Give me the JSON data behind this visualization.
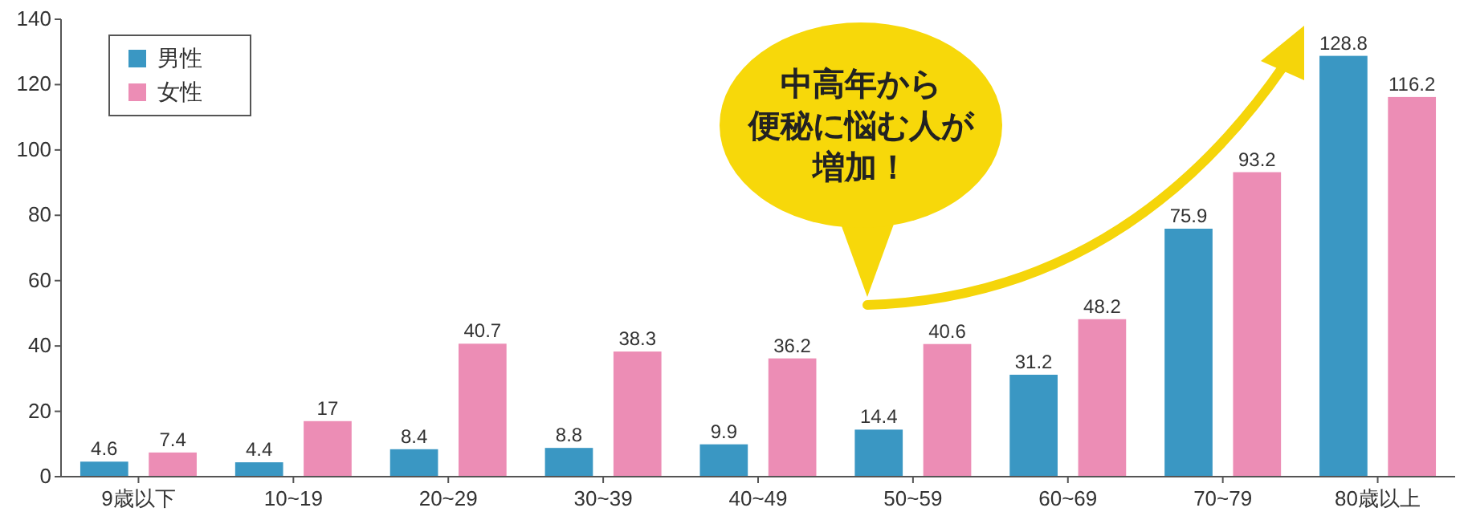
{
  "chart_data": {
    "type": "bar",
    "categories": [
      "9歳以下",
      "10~19",
      "20~29",
      "30~39",
      "40~49",
      "50~59",
      "60~69",
      "70~79",
      "80歳以上"
    ],
    "series": [
      {
        "name": "男性",
        "color": "#3a97c3",
        "values": [
          4.6,
          4.4,
          8.4,
          8.8,
          9.9,
          14.4,
          31.2,
          75.9,
          128.8
        ]
      },
      {
        "name": "女性",
        "color": "#ec8db5",
        "values": [
          7.4,
          17,
          40.7,
          38.3,
          36.2,
          40.6,
          48.2,
          93.2,
          116.2
        ]
      }
    ],
    "ylim": [
      0,
      140
    ],
    "yticks": [
      0,
      20,
      40,
      60,
      80,
      100,
      120,
      140
    ],
    "grid": false,
    "legend": "top left",
    "data_labels": true,
    "annotations": [
      "中高年から",
      "便秘に悩む人が",
      "増加！"
    ]
  }
}
